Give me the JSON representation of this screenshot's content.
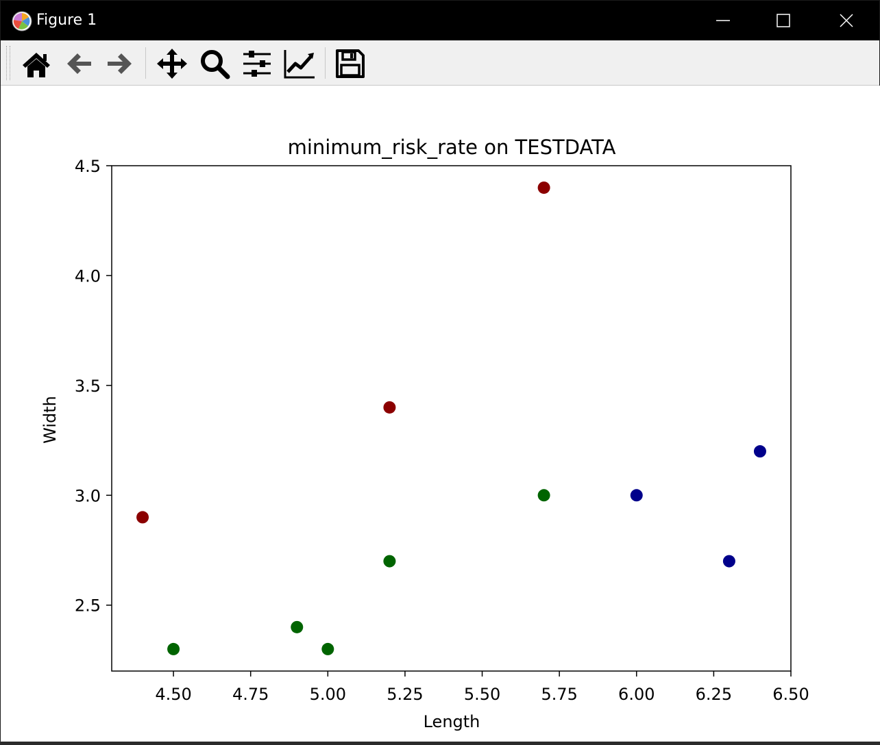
{
  "window": {
    "title": "Figure 1"
  },
  "toolbar": {
    "buttons": [
      "home-icon",
      "back-icon",
      "forward-icon",
      "pan-icon",
      "zoom-icon",
      "configure-subplots-icon",
      "edit-axis-icon",
      "save-icon"
    ]
  },
  "colors": {
    "red": "#8b0000",
    "green": "#006400",
    "blue": "#00008b"
  },
  "chart_data": {
    "type": "scatter",
    "title": "minimum_risk_rate on TESTDATA",
    "xlabel": "Length",
    "ylabel": "Width",
    "xlim": [
      4.3,
      6.5
    ],
    "ylim": [
      2.2,
      4.5
    ],
    "xticks": [
      "4.50",
      "4.75",
      "5.00",
      "5.25",
      "5.50",
      "5.75",
      "6.00",
      "6.25",
      "6.50"
    ],
    "yticks": [
      "2.5",
      "3.0",
      "3.5",
      "4.0",
      "4.5"
    ],
    "xtick_values": [
      4.5,
      4.75,
      5.0,
      5.25,
      5.5,
      5.75,
      6.0,
      6.25,
      6.5
    ],
    "ytick_values": [
      2.5,
      3.0,
      3.5,
      4.0,
      4.5
    ],
    "grid": false,
    "series": [
      {
        "color": "#8b0000",
        "points": [
          [
            5.7,
            4.4
          ],
          [
            5.2,
            3.4
          ],
          [
            4.4,
            2.9
          ]
        ]
      },
      {
        "color": "#006400",
        "points": [
          [
            5.7,
            3.0
          ],
          [
            5.2,
            2.7
          ],
          [
            4.9,
            2.4
          ],
          [
            4.5,
            2.3
          ],
          [
            5.0,
            2.3
          ]
        ]
      },
      {
        "color": "#00008b",
        "points": [
          [
            6.0,
            3.0
          ],
          [
            6.4,
            3.2
          ],
          [
            6.3,
            2.7
          ]
        ]
      }
    ]
  }
}
